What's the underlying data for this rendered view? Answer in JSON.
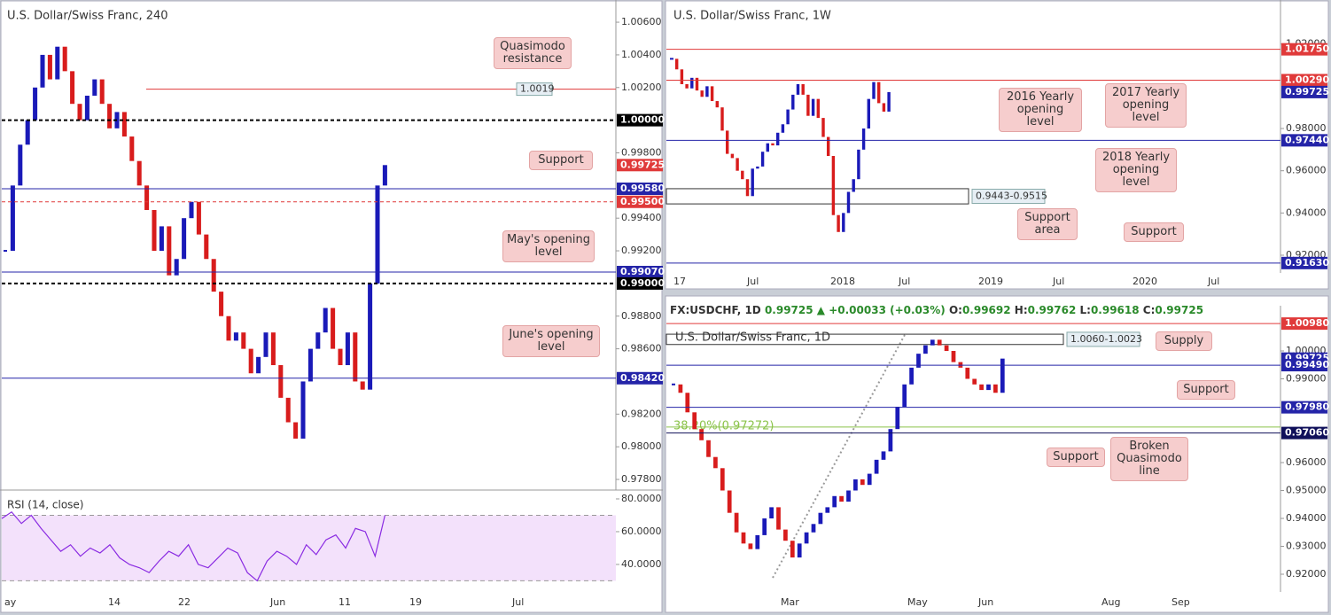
{
  "panels": [
    {
      "title": "U.S. Dollar/Swiss Franc, 240",
      "ylim": [
        0.97735,
        1.00736
      ],
      "yticks": [
        {
          "value": 1.006,
          "label": "1.00600"
        },
        {
          "value": 1.004,
          "label": "1.00400"
        },
        {
          "value": 1.002,
          "label": "1.00200"
        },
        {
          "value": 0.998,
          "label": "0.99800"
        },
        {
          "value": 0.994,
          "label": "0.99400"
        },
        {
          "value": 0.992,
          "label": "0.99200"
        },
        {
          "value": 0.988,
          "label": "0.98800"
        },
        {
          "value": 0.986,
          "label": "0.98600"
        },
        {
          "value": 0.982,
          "label": "0.98200"
        },
        {
          "value": 0.98,
          "label": "0.98000"
        },
        {
          "value": 0.978,
          "label": "0.97800"
        }
      ],
      "up_color": "#1a1ab8",
      "down_color": "#d81c1c",
      "closes": [
        0.992,
        0.996,
        0.9985,
        1.0,
        1.002,
        1.004,
        1.0025,
        1.0045,
        1.003,
        1.001,
        1.0,
        1.0015,
        1.0025,
        1.001,
        0.9995,
        1.0005,
        0.999,
        0.9975,
        0.996,
        0.9945,
        0.992,
        0.9935,
        0.9905,
        0.9915,
        0.994,
        0.995,
        0.993,
        0.9915,
        0.9895,
        0.988,
        0.9865,
        0.987,
        0.986,
        0.9845,
        0.9855,
        0.987,
        0.985,
        0.983,
        0.9815,
        0.9805,
        0.984,
        0.986,
        0.987,
        0.9885,
        0.986,
        0.985,
        0.987,
        0.984,
        0.9835,
        0.99,
        0.996,
        0.99725
      ],
      "marker": 1.0019,
      "levels": [
        {
          "value": 1.0,
          "label": "1.00000",
          "color": "#000000",
          "line": "dashed"
        },
        {
          "value": 0.99725,
          "label": "0.99725",
          "color": "#e03a3a",
          "line": "none"
        },
        {
          "value": 0.9958,
          "label": "0.99580",
          "color": "#2424a8",
          "line": "solid"
        },
        {
          "value": 0.995,
          "label": "0.99500",
          "color": "#e03a3a",
          "line": "dashed"
        },
        {
          "value": 0.9907,
          "label": "0.99070",
          "color": "#2424a8",
          "line": "solid"
        },
        {
          "value": 0.99,
          "label": "0.99000",
          "color": "#000000",
          "line": "dashed"
        },
        {
          "value": 0.9842,
          "label": "0.98420",
          "color": "#2424a8",
          "line": "solid"
        }
      ],
      "xlabels": [
        "ay",
        "14",
        "22",
        "Jun",
        "11",
        "19",
        "Jul"
      ],
      "callouts": [
        "Quasimodo resistance",
        "Support",
        "May's opening level",
        "June's opening level"
      ],
      "rsi": {
        "title": "RSI (14, close)",
        "ylim": [
          23.2,
          85.4
        ],
        "yticks": [
          {
            "value": 80,
            "label": "80.0000"
          },
          {
            "value": 60,
            "label": "60.0000"
          },
          {
            "value": 40,
            "label": "40.0000"
          }
        ],
        "bands": [
          30,
          70
        ],
        "color": "#8a2be2",
        "values": [
          68,
          72,
          65,
          70,
          62,
          55,
          48,
          52,
          45,
          50,
          47,
          52,
          44,
          40,
          38,
          35,
          42,
          48,
          45,
          52,
          40,
          38,
          44,
          50,
          47,
          35,
          30,
          42,
          48,
          45,
          40,
          52,
          46,
          55,
          58,
          50,
          62,
          60,
          45,
          70
        ]
      }
    },
    {
      "title": "U.S. Dollar/Swiss Franc, 1W",
      "ylim": [
        0.91161,
        1.04085
      ],
      "yticks": [
        {
          "value": 1.02,
          "label": "1.02000"
        },
        {
          "value": 0.98,
          "label": "0.98000"
        },
        {
          "value": 0.96,
          "label": "0.96000"
        },
        {
          "value": 0.94,
          "label": "0.94000"
        },
        {
          "value": 0.92,
          "label": "0.92000"
        }
      ],
      "up_color": "#1a1ab8",
      "down_color": "#d81c1c",
      "closes": [
        1.013,
        1.008,
        1.001,
        0.999,
        1.004,
        0.998,
        0.995,
        1.0,
        0.993,
        0.99,
        0.979,
        0.968,
        0.966,
        0.96,
        0.956,
        0.948,
        0.961,
        0.962,
        0.969,
        0.973,
        0.972,
        0.978,
        0.982,
        0.989,
        0.996,
        1.001,
        0.996,
        0.986,
        0.994,
        0.985,
        0.976,
        0.967,
        0.939,
        0.931,
        0.94,
        0.95,
        0.956,
        0.97,
        0.98,
        0.994,
        1.002,
        0.992,
        0.988,
        0.99725
      ],
      "zone": {
        "low": 0.9443,
        "high": 0.9515,
        "label": "0.9443-0.9515"
      },
      "levels": [
        {
          "value": 1.0175,
          "label": "1.01750",
          "color": "#e03a3a",
          "line": "solid"
        },
        {
          "value": 1.0029,
          "label": "1.00290",
          "color": "#e03a3a",
          "line": "solid"
        },
        {
          "value": 0.99725,
          "label": "0.99725",
          "color": "#2424a8",
          "line": "none"
        },
        {
          "value": 0.9744,
          "label": "0.97440",
          "color": "#2424a8",
          "line": "solid"
        },
        {
          "value": 0.9163,
          "label": "0.91630",
          "color": "#2424a8",
          "line": "solid"
        }
      ],
      "xlabels": [
        "17",
        "Jul",
        "2018",
        "Jul",
        "2019",
        "Jul",
        "2020",
        "Jul"
      ],
      "callouts": [
        "2016 Yearly opening level",
        "2017 Yearly opening level",
        "2018 Yearly opening level",
        "Support area",
        "Support"
      ]
    },
    {
      "title": "U.S. Dollar/Swiss Franc, 1D",
      "header": {
        "symbol": "FX:USDCHF, 1D",
        "last": 0.99725,
        "arrow": "▲",
        "change": "+0.00033 (+0.03%)",
        "ohlc": [
          {
            "label": "O:",
            "value": 0.99692
          },
          {
            "label": "H:",
            "value": 0.99762
          },
          {
            "label": "L:",
            "value": 0.99618
          },
          {
            "label": "C:",
            "value": 0.99725
          }
        ]
      },
      "ylim": [
        0.91365,
        1.01619
      ],
      "yticks": [
        {
          "value": 1.0,
          "label": "1.00000"
        },
        {
          "value": 0.99,
          "label": "0.99000"
        },
        {
          "value": 0.96,
          "label": "0.96000"
        },
        {
          "value": 0.95,
          "label": "0.95000"
        },
        {
          "value": 0.94,
          "label": "0.94000"
        },
        {
          "value": 0.93,
          "label": "0.93000"
        },
        {
          "value": 0.92,
          "label": "0.92000"
        }
      ],
      "up_color": "#1a1ab8",
      "down_color": "#d81c1c",
      "closes": [
        0.988,
        0.985,
        0.978,
        0.972,
        0.968,
        0.962,
        0.958,
        0.95,
        0.942,
        0.935,
        0.931,
        0.929,
        0.934,
        0.94,
        0.944,
        0.936,
        0.932,
        0.926,
        0.931,
        0.935,
        0.938,
        0.942,
        0.944,
        0.948,
        0.946,
        0.95,
        0.954,
        0.952,
        0.956,
        0.961,
        0.964,
        0.972,
        0.98,
        0.988,
        0.994,
        0.999,
        1.002,
        1.004,
        1.002,
        1.0,
        0.996,
        0.994,
        0.99,
        0.988,
        0.986,
        0.988,
        0.985,
        0.99725
      ],
      "zone": {
        "low": 1.0023,
        "high": 1.006,
        "label": "1.0060-1.0023"
      },
      "fib": {
        "value": 0.97272,
        "label": "38.20%(0.97272)",
        "color": "#8bc34a"
      },
      "levels": [
        {
          "value": 1.0098,
          "label": "1.00980",
          "color": "#e03a3a",
          "line": "solid"
        },
        {
          "value": 0.99725,
          "label": "0.99725",
          "color": "#2424a8",
          "line": "none"
        },
        {
          "value": 0.9949,
          "label": "0.99490",
          "color": "#2424a8",
          "line": "solid"
        },
        {
          "value": 0.9798,
          "label": "0.97980",
          "color": "#2424a8",
          "line": "solid"
        },
        {
          "value": 0.9706,
          "label": "0.97060",
          "color": "#10105a",
          "line": "solid"
        }
      ],
      "xlabels": [
        "Mar",
        "May",
        "Jun",
        "Aug",
        "Sep"
      ],
      "callouts": [
        "Supply",
        "Support",
        "Support",
        "Broken Quasimodo line"
      ]
    }
  ]
}
